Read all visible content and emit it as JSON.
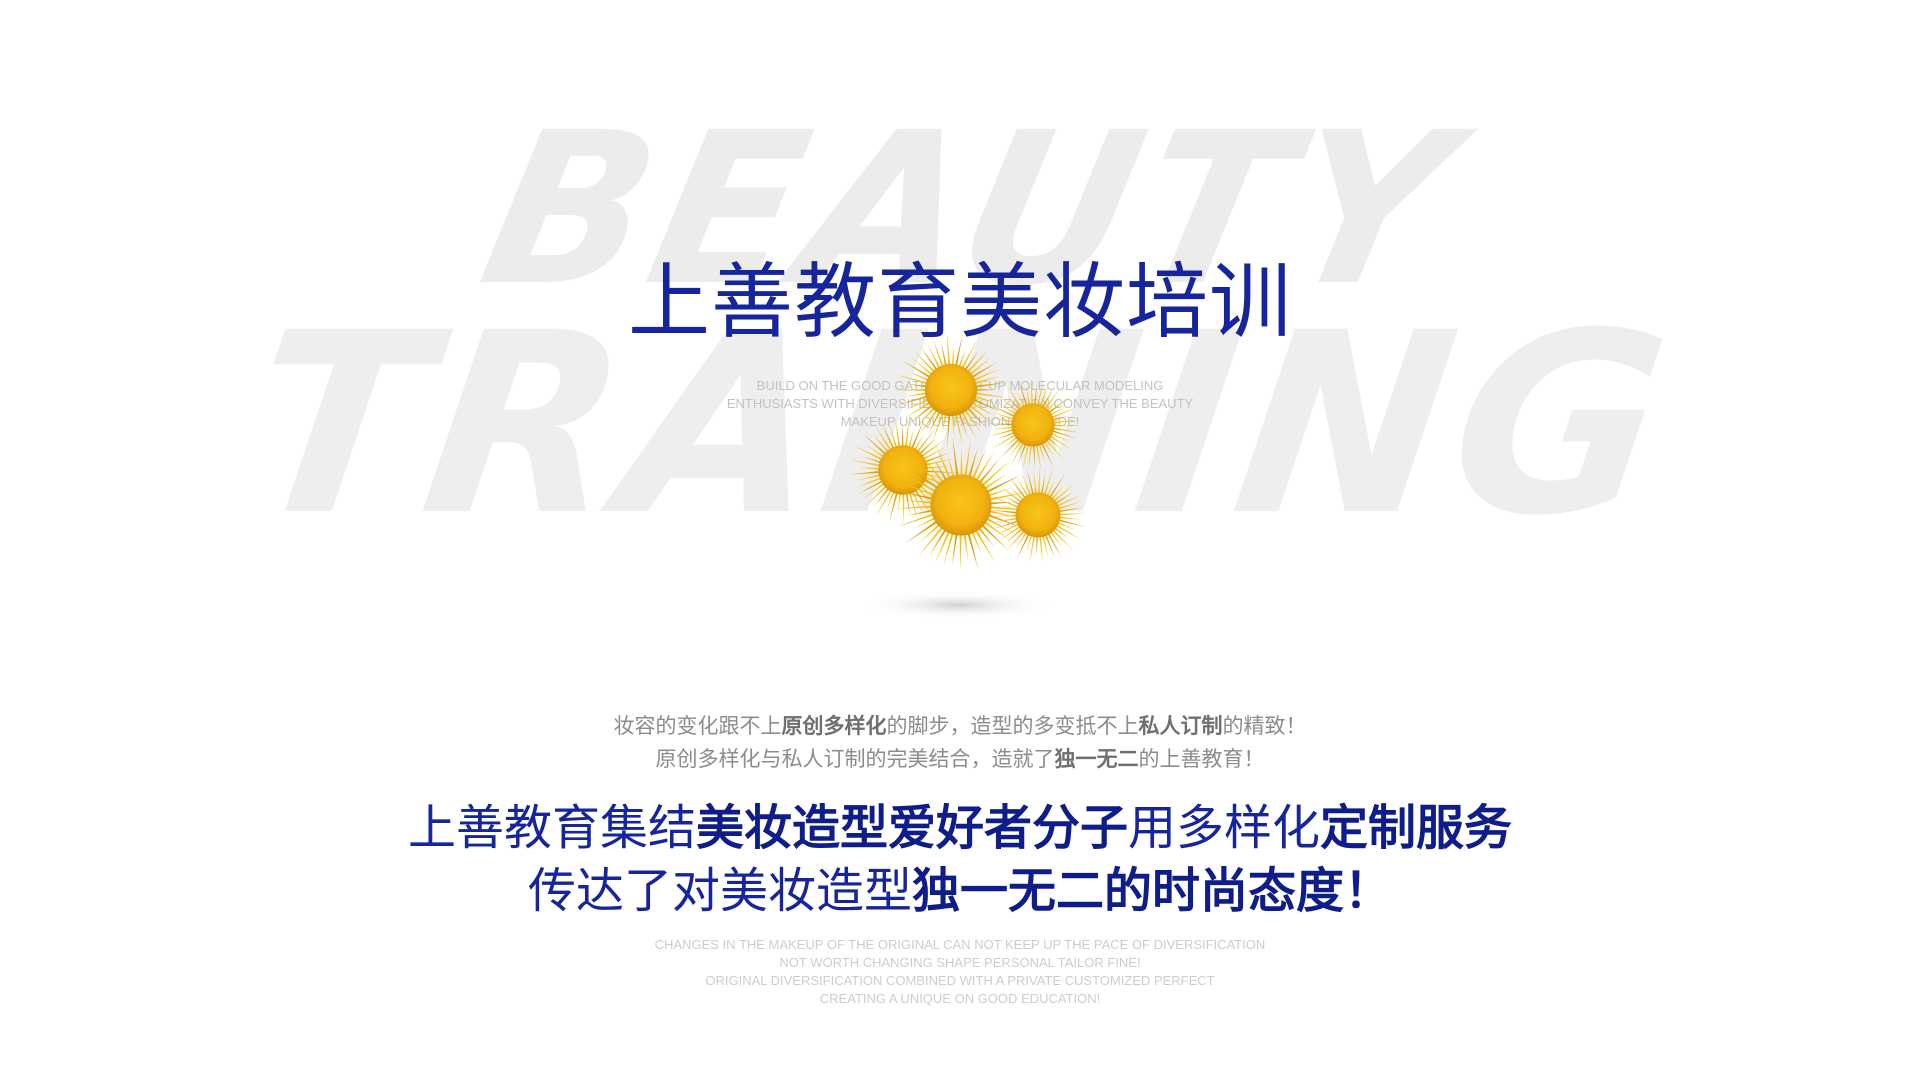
{
  "background": {
    "word_1": "BEAUTY",
    "word_2": "TRAINING"
  },
  "title": "上善教育美妆培训",
  "tagline_top": [
    "BUILD ON THE GOOD GATHER MAKEUP MOLECULAR MODELING",
    "ENTHUSIASTS WITH DIVERSIFIED CUSTOMIZATION CONVEY THE BEAUTY",
    "MAKEUP UNIQUE FASHION ATTITUDE!"
  ],
  "intro": {
    "line1": {
      "p1": "妆容的变化跟不上",
      "b1": "原创多样化",
      "p2": "的脚步，造型的多变抵不上",
      "b2": "私人订制",
      "p3": "的精致！"
    },
    "line2": {
      "p1": "原创多样化与私人订制的完美结合，造就了",
      "b1": "独一无二",
      "p2": "的上善教育！"
    }
  },
  "headline": {
    "line1": {
      "p1": "上善教育集结",
      "b1": "美妆造型爱好者分子",
      "p2": "用多样化",
      "b2": "定制服务"
    },
    "line2": {
      "p1": "传达了对美妆造型",
      "b1": "独一无二的时尚态度！"
    }
  },
  "tagline_bottom": [
    "CHANGES IN THE MAKEUP OF THE ORIGINAL CAN NOT KEEP UP THE PACE OF DIVERSIFICATION",
    "NOT WORTH CHANGING SHAPE PERSONAL TAILOR FINE!",
    "ORIGINAL DIVERSIFICATION COMBINED WITH A PRIVATE CUSTOMIZED PERFECT",
    "CREATING A UNIQUE ON GOOD EDUCATION!"
  ],
  "colors": {
    "brand_blue": "#16259b",
    "flower_yellow": "#f5b914",
    "background_text": "#ececec",
    "muted_text": "#8c8c8c"
  },
  "icons": {
    "flower": "yellow-chrysanthemum-bouquet"
  }
}
